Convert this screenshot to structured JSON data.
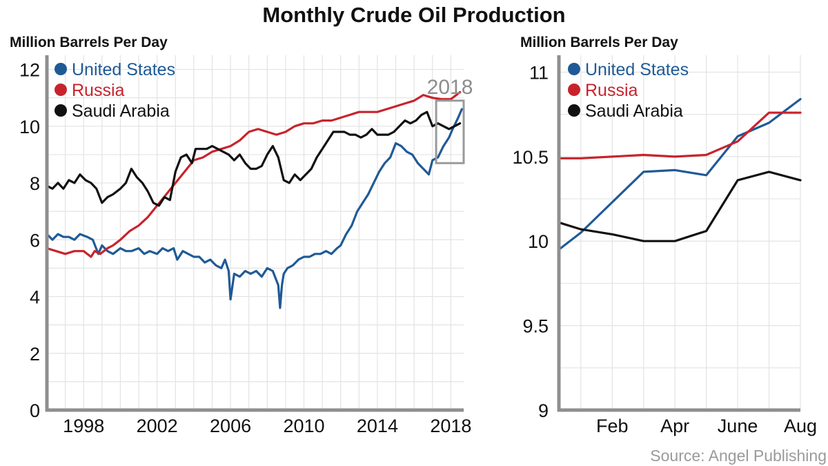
{
  "title": "Monthly Crude Oil Production",
  "source": "Source: Angel Publishing",
  "colors": {
    "us": "#1f5a96",
    "russia": "#c8232c",
    "saudi": "#111111",
    "axis": "#8f8f8f",
    "grid": "#e3e3e3",
    "box": "#9a9a9a"
  },
  "chart_data": [
    {
      "type": "line",
      "ylabel": "Million Barrels Per Day",
      "xlim": [
        1996,
        2018.7
      ],
      "ylim": [
        0,
        12.5
      ],
      "yticks": [
        0,
        2,
        4,
        6,
        8,
        10,
        12
      ],
      "xticks": [
        {
          "value": 1998,
          "label": "1998"
        },
        {
          "value": 2002,
          "label": "2002"
        },
        {
          "value": 2006,
          "label": "2006"
        },
        {
          "value": 2010,
          "label": "2010"
        },
        {
          "value": 2014,
          "label": "2014"
        },
        {
          "value": 2018,
          "label": "2018"
        }
      ],
      "legend": [
        "United States",
        "Russia",
        "Saudi Arabia"
      ],
      "annotation": {
        "label": "2018",
        "x_range": [
          2017.2,
          2018.7
        ],
        "y_range": [
          8.7,
          10.9
        ]
      },
      "series": [
        {
          "name": "United States",
          "color_key": "us",
          "x": [
            1996.0,
            1996.3,
            1996.6,
            1996.9,
            1997.2,
            1997.5,
            1997.8,
            1998.2,
            1998.5,
            1998.8,
            1999.0,
            1999.3,
            1999.6,
            2000.0,
            2000.3,
            2000.6,
            2001.0,
            2001.3,
            2001.6,
            2002.0,
            2002.3,
            2002.6,
            2002.9,
            2003.1,
            2003.4,
            2003.7,
            2004.0,
            2004.3,
            2004.6,
            2004.9,
            2005.2,
            2005.5,
            2005.7,
            2005.9,
            2006.0,
            2006.2,
            2006.5,
            2006.8,
            2007.1,
            2007.4,
            2007.7,
            2008.0,
            2008.3,
            2008.6,
            2008.7,
            2008.8,
            2008.9,
            2009.1,
            2009.4,
            2009.7,
            2010.0,
            2010.3,
            2010.6,
            2010.9,
            2011.2,
            2011.5,
            2011.8,
            2012.0,
            2012.3,
            2012.6,
            2012.9,
            2013.2,
            2013.5,
            2013.8,
            2014.1,
            2014.4,
            2014.7,
            2015.0,
            2015.3,
            2015.6,
            2015.9,
            2016.2,
            2016.5,
            2016.8,
            2017.0,
            2017.3,
            2017.6,
            2017.9,
            2018.1,
            2018.4,
            2018.6
          ],
          "values": [
            6.2,
            6.0,
            6.2,
            6.1,
            6.1,
            6.0,
            6.2,
            6.1,
            6.0,
            5.5,
            5.8,
            5.6,
            5.5,
            5.7,
            5.6,
            5.6,
            5.7,
            5.5,
            5.6,
            5.5,
            5.7,
            5.6,
            5.7,
            5.3,
            5.6,
            5.5,
            5.4,
            5.4,
            5.2,
            5.3,
            5.1,
            5.0,
            5.3,
            4.9,
            3.9,
            4.8,
            4.7,
            4.9,
            4.8,
            4.9,
            4.7,
            5.0,
            4.9,
            4.4,
            3.6,
            4.4,
            4.8,
            5.0,
            5.1,
            5.3,
            5.4,
            5.4,
            5.5,
            5.5,
            5.6,
            5.5,
            5.7,
            5.8,
            6.2,
            6.5,
            7.0,
            7.3,
            7.6,
            8.0,
            8.4,
            8.7,
            8.9,
            9.4,
            9.3,
            9.1,
            9.0,
            8.7,
            8.5,
            8.3,
            8.8,
            8.9,
            9.3,
            9.6,
            9.9,
            10.3,
            10.6
          ]
        },
        {
          "name": "Russia",
          "color_key": "russia",
          "x": [
            1996.0,
            1996.5,
            1997.0,
            1997.5,
            1998.0,
            1998.4,
            1998.6,
            1998.9,
            1999.3,
            1999.6,
            2000.0,
            2000.5,
            2001.0,
            2001.5,
            2002.0,
            2002.5,
            2003.0,
            2003.5,
            2004.0,
            2004.5,
            2005.0,
            2005.5,
            2006.0,
            2006.5,
            2007.0,
            2007.5,
            2008.0,
            2008.5,
            2009.0,
            2009.5,
            2010.0,
            2010.5,
            2011.0,
            2011.5,
            2012.0,
            2012.5,
            2013.0,
            2013.5,
            2014.0,
            2014.5,
            2015.0,
            2015.5,
            2016.0,
            2016.5,
            2017.0,
            2017.5,
            2018.0,
            2018.5
          ],
          "values": [
            5.7,
            5.6,
            5.5,
            5.6,
            5.6,
            5.4,
            5.6,
            5.5,
            5.7,
            5.8,
            6.0,
            6.3,
            6.5,
            6.8,
            7.2,
            7.6,
            8.0,
            8.4,
            8.8,
            8.9,
            9.1,
            9.2,
            9.3,
            9.5,
            9.8,
            9.9,
            9.8,
            9.7,
            9.8,
            10.0,
            10.1,
            10.1,
            10.2,
            10.2,
            10.3,
            10.4,
            10.5,
            10.5,
            10.5,
            10.6,
            10.7,
            10.8,
            10.9,
            11.1,
            11.0,
            10.95,
            10.95,
            11.2
          ]
        },
        {
          "name": "Saudi Arabia",
          "color_key": "saudi",
          "x": [
            1996.0,
            1996.3,
            1996.6,
            1996.9,
            1997.2,
            1997.5,
            1997.8,
            1998.1,
            1998.4,
            1998.7,
            1999.0,
            1999.3,
            1999.6,
            2000.0,
            2000.3,
            2000.6,
            2000.9,
            2001.2,
            2001.5,
            2001.8,
            2002.1,
            2002.4,
            2002.7,
            2003.0,
            2003.3,
            2003.6,
            2003.9,
            2004.1,
            2004.4,
            2004.7,
            2005.0,
            2005.3,
            2005.6,
            2005.9,
            2006.2,
            2006.5,
            2006.8,
            2007.1,
            2007.4,
            2007.7,
            2008.0,
            2008.3,
            2008.6,
            2008.9,
            2009.2,
            2009.5,
            2009.8,
            2010.1,
            2010.4,
            2010.7,
            2011.0,
            2011.3,
            2011.6,
            2011.9,
            2012.2,
            2012.5,
            2012.8,
            2013.1,
            2013.4,
            2013.7,
            2014.0,
            2014.3,
            2014.6,
            2014.9,
            2015.2,
            2015.5,
            2015.8,
            2016.1,
            2016.4,
            2016.7,
            2017.0,
            2017.3,
            2017.6,
            2017.9,
            2018.2,
            2018.5
          ],
          "values": [
            7.9,
            7.8,
            8.0,
            7.8,
            8.1,
            8.0,
            8.3,
            8.1,
            8.0,
            7.8,
            7.3,
            7.5,
            7.6,
            7.8,
            8.0,
            8.5,
            8.2,
            8.0,
            7.7,
            7.3,
            7.2,
            7.5,
            7.4,
            8.4,
            8.9,
            9.0,
            8.7,
            9.2,
            9.2,
            9.2,
            9.3,
            9.2,
            9.1,
            9.0,
            8.8,
            9.0,
            8.7,
            8.5,
            8.5,
            8.6,
            9.0,
            9.3,
            8.9,
            8.1,
            8.0,
            8.3,
            8.1,
            8.3,
            8.5,
            8.9,
            9.2,
            9.5,
            9.8,
            9.8,
            9.8,
            9.7,
            9.7,
            9.6,
            9.7,
            9.9,
            9.7,
            9.7,
            9.7,
            9.8,
            10.0,
            10.2,
            10.1,
            10.2,
            10.4,
            10.5,
            10.0,
            10.1,
            10.0,
            9.9,
            10.0,
            10.1
          ]
        }
      ]
    },
    {
      "type": "line",
      "ylabel": "Million Barrels Per Day",
      "xlim": [
        0.3,
        8.0
      ],
      "ylim": [
        9.0,
        11.1
      ],
      "yticks": [
        9,
        9.5,
        10,
        10.5,
        11
      ],
      "ytick_labels": [
        "9",
        "9.5",
        "10",
        "10.5",
        "11"
      ],
      "xticks": [
        {
          "value": 2,
          "label": "Feb"
        },
        {
          "value": 4,
          "label": "Apr"
        },
        {
          "value": 6,
          "label": "June"
        },
        {
          "value": 8,
          "label": "Aug"
        }
      ],
      "legend": [
        "United States",
        "Russia",
        "Saudi Arabia"
      ],
      "series": [
        {
          "name": "United States",
          "color_key": "us",
          "x": [
            0.3,
            1,
            2,
            3,
            4,
            5,
            6,
            7,
            8
          ],
          "values": [
            9.95,
            10.05,
            10.23,
            10.41,
            10.42,
            10.39,
            10.62,
            10.7,
            10.84
          ]
        },
        {
          "name": "Russia",
          "color_key": "russia",
          "x": [
            0.3,
            1,
            2,
            3,
            4,
            5,
            6,
            7,
            8
          ],
          "values": [
            10.49,
            10.49,
            10.5,
            10.51,
            10.5,
            10.51,
            10.59,
            10.76,
            10.76
          ]
        },
        {
          "name": "Saudi Arabia",
          "color_key": "saudi",
          "x": [
            0.3,
            1,
            2,
            3,
            4,
            5,
            6,
            7,
            8
          ],
          "values": [
            10.11,
            10.07,
            10.04,
            10.0,
            10.0,
            10.06,
            10.36,
            10.41,
            10.36
          ]
        }
      ]
    }
  ]
}
